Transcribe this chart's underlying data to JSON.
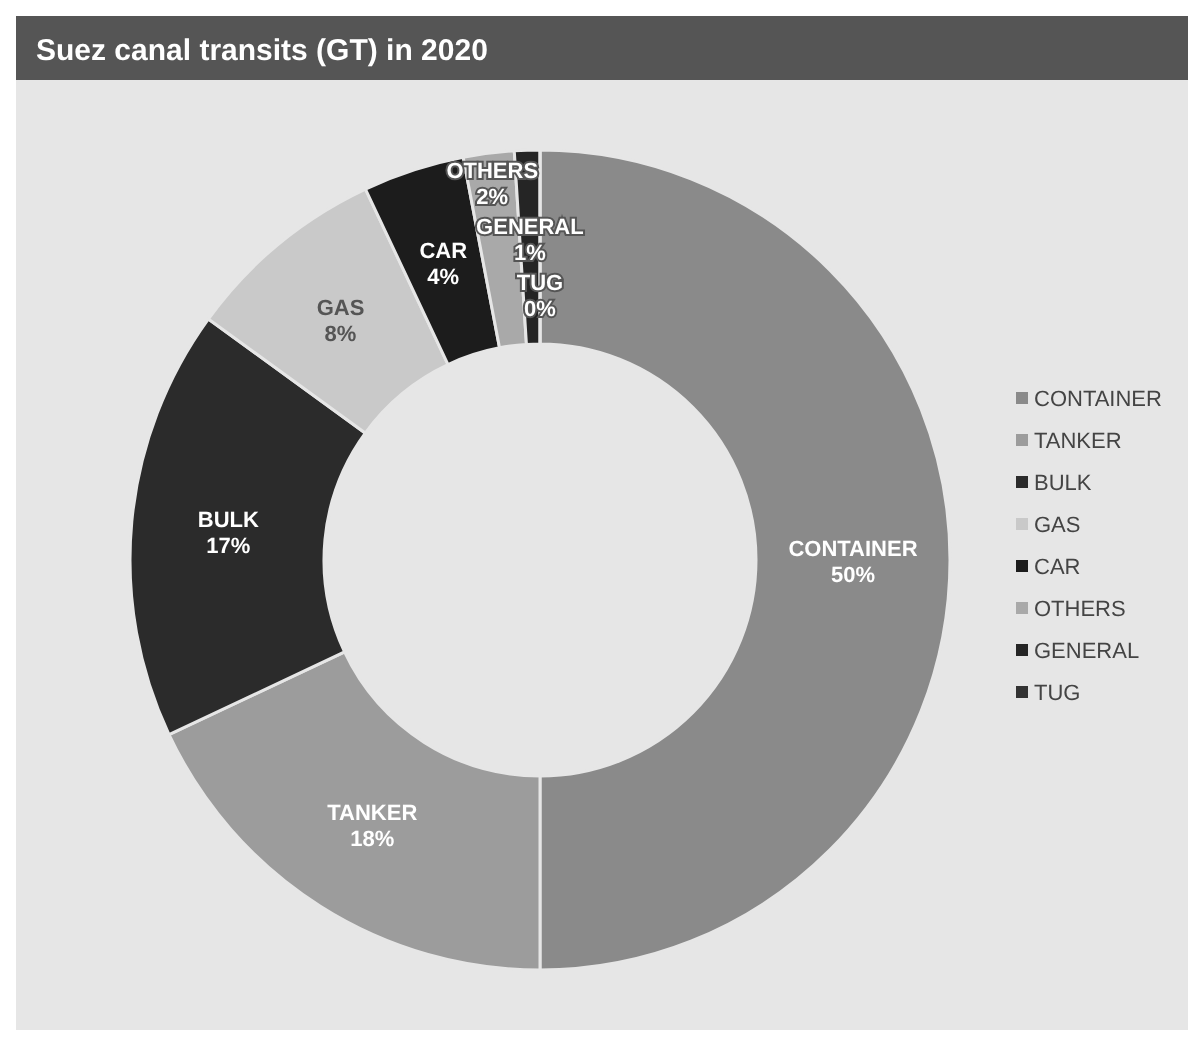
{
  "chart_data": {
    "type": "donut",
    "title": "Suez canal transits (GT) in 2020",
    "categories": [
      "CONTAINER",
      "TANKER",
      "BULK",
      "GAS",
      "CAR",
      "OTHERS",
      "GENERAL",
      "TUG"
    ],
    "values": [
      50,
      18,
      17,
      8,
      4,
      2,
      1,
      0
    ],
    "value_labels": [
      "50%",
      "18%",
      "17%",
      "8%",
      "4%",
      "2%",
      "1%",
      "0%"
    ],
    "colors": [
      "#8a8a8a",
      "#9c9c9c",
      "#2b2b2b",
      "#c9c9c9",
      "#1c1c1c",
      "#a9a9a9",
      "#252525",
      "#333333"
    ],
    "legend": "right"
  }
}
